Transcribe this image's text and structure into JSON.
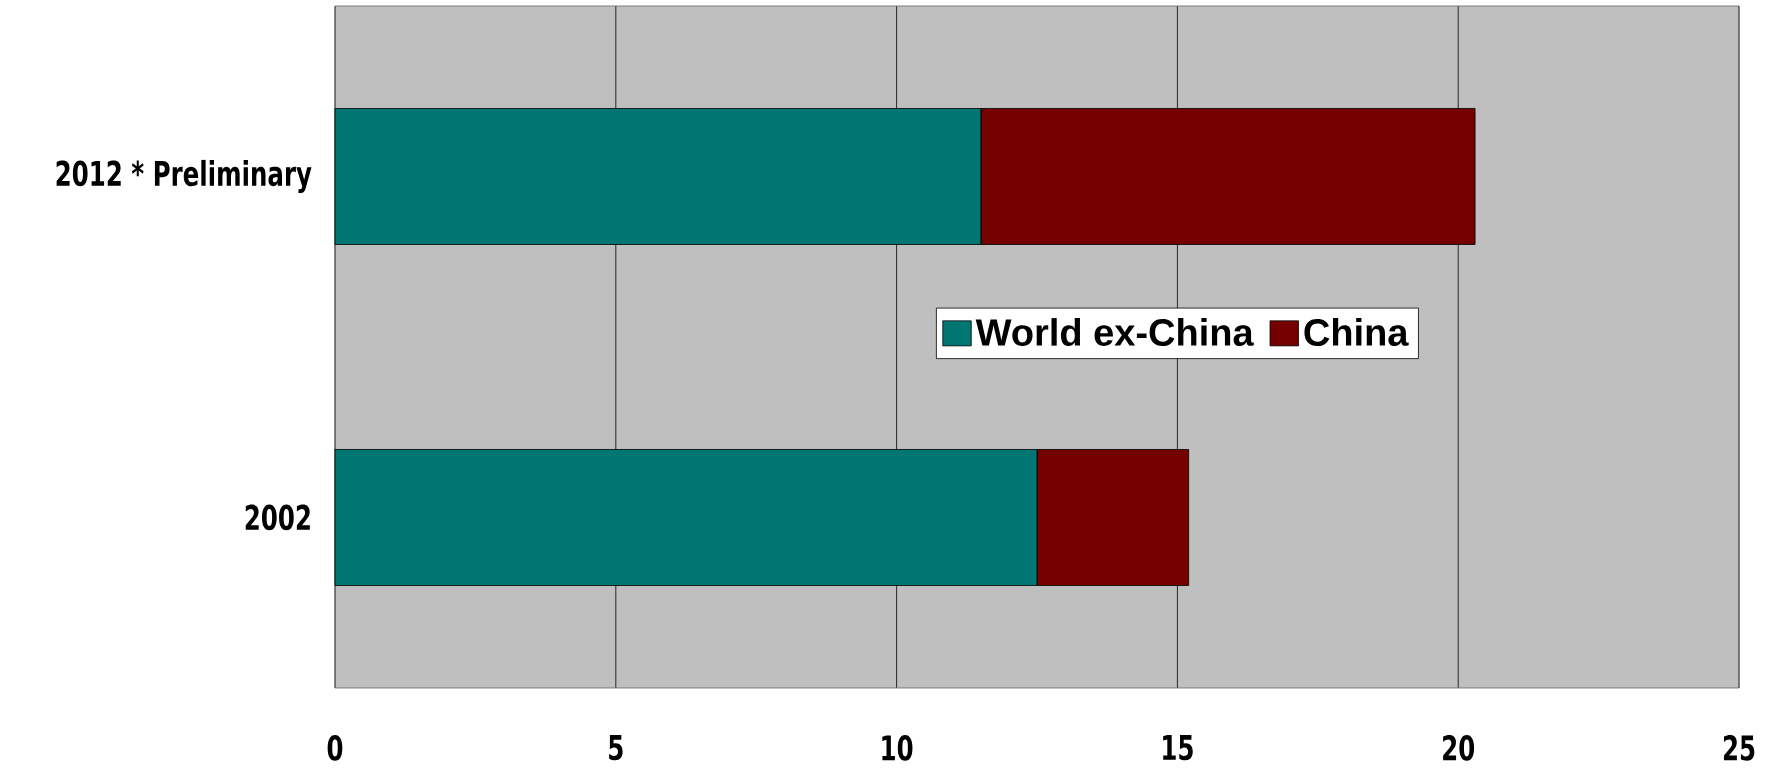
{
  "chart_data": {
    "type": "bar",
    "orientation": "horizontal",
    "stacked": true,
    "categories": [
      "2012 * Preliminary",
      "2002"
    ],
    "series": [
      {
        "name": "World ex-China",
        "color": "#007672",
        "values": [
          11.5,
          12.5
        ]
      },
      {
        "name": "China",
        "color": "#750000",
        "values": [
          8.8,
          2.7
        ]
      }
    ],
    "xlim": [
      0,
      25
    ],
    "xticks": [
      0,
      5,
      10,
      15,
      20,
      25
    ],
    "grid": "x",
    "legend": "right"
  }
}
